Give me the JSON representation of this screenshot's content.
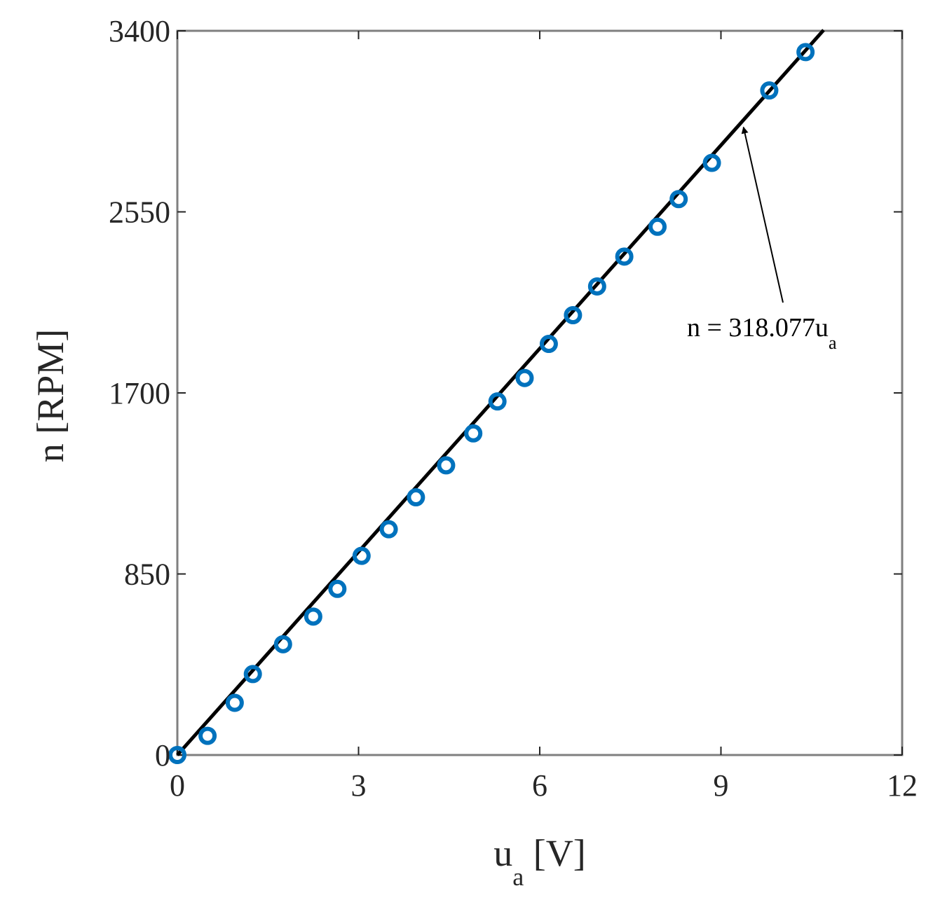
{
  "chart_data": {
    "type": "scatter",
    "xlabel": {
      "main": "u",
      "sub": "a",
      "unit": " [V]"
    },
    "ylabel": "n [RPM]",
    "xlim": [
      0,
      12
    ],
    "ylim": [
      0,
      3400
    ],
    "xticks": [
      0,
      3,
      6,
      9,
      12
    ],
    "yticks": [
      0,
      850,
      1700,
      2550,
      3400
    ],
    "grid": false,
    "series": [
      {
        "marker": "circle",
        "color": "#0072BD",
        "points": [
          [
            0.0,
            0
          ],
          [
            0.5,
            90
          ],
          [
            0.95,
            245
          ],
          [
            1.25,
            380
          ],
          [
            1.75,
            520
          ],
          [
            2.25,
            650
          ],
          [
            2.65,
            780
          ],
          [
            3.05,
            935
          ],
          [
            3.5,
            1060
          ],
          [
            3.95,
            1210
          ],
          [
            4.45,
            1360
          ],
          [
            4.9,
            1510
          ],
          [
            5.3,
            1660
          ],
          [
            5.75,
            1770
          ],
          [
            6.15,
            1930
          ],
          [
            6.55,
            2065
          ],
          [
            6.95,
            2200
          ],
          [
            7.4,
            2340
          ],
          [
            7.95,
            2480
          ],
          [
            8.3,
            2610
          ],
          [
            8.85,
            2780
          ],
          [
            9.8,
            3120
          ],
          [
            10.4,
            3300
          ]
        ]
      },
      {
        "type": "line",
        "color": "#000000",
        "x": [
          0,
          10.7
        ],
        "y": [
          0,
          3403.4
        ]
      }
    ],
    "annotation": {
      "text_main": "n = 318.077u",
      "text_sub": "a",
      "arrow_to": [
        9.35,
        2974
      ],
      "color": "#000000"
    }
  }
}
